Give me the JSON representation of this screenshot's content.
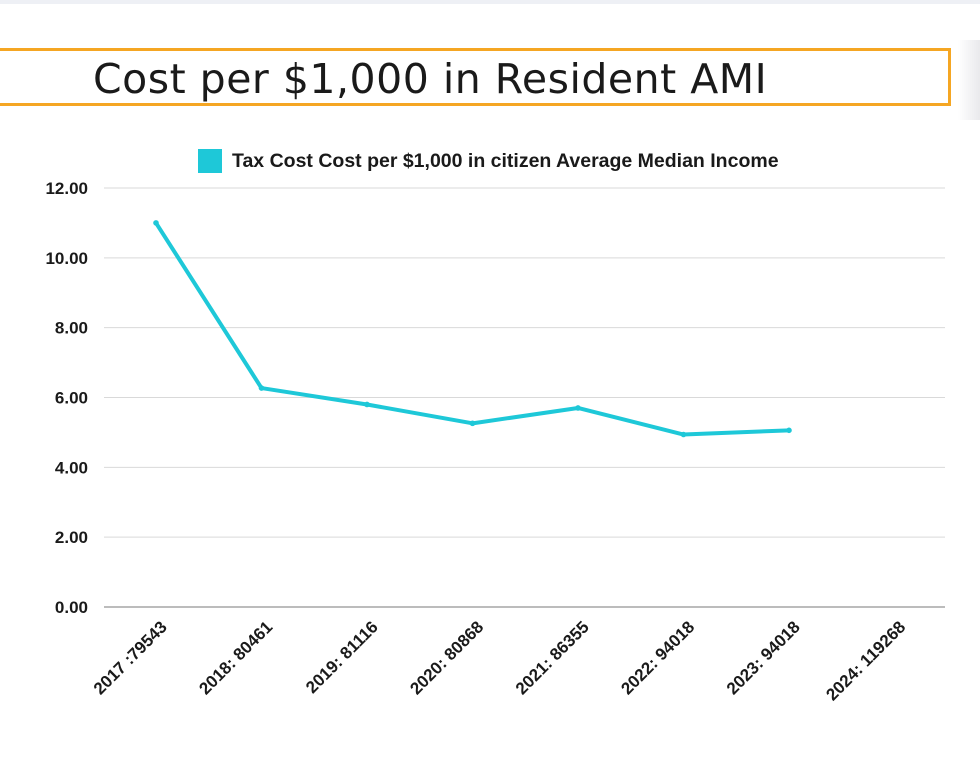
{
  "title": "Cost per $1,000 in Resident AMI",
  "colors": {
    "series": "#1ec8d8",
    "title_border": "#f5a623",
    "grid": "#d9d9d9",
    "axis": "#a6a6a6"
  },
  "chart_data": {
    "type": "line",
    "title": "Cost per $1,000 in Resident AMI",
    "xlabel": "",
    "ylabel": "",
    "categories": [
      "2017 :79543",
      "2018: 80461",
      "2019: 81116",
      "2020: 80868",
      "2021: 86355",
      "2022: 94018",
      "2023: 94018",
      "2024: 119268"
    ],
    "series": [
      {
        "name": "Tax Cost Cost per $1,000 in citizen Average Median Income",
        "values": [
          11.0,
          6.27,
          5.8,
          5.26,
          5.7,
          4.94,
          5.06,
          null
        ]
      }
    ],
    "ylim": [
      0,
      12
    ],
    "yticks": [
      "0.00",
      "2.00",
      "4.00",
      "6.00",
      "8.00",
      "10.00",
      "12.00"
    ],
    "grid": true,
    "legend_position": "top"
  }
}
